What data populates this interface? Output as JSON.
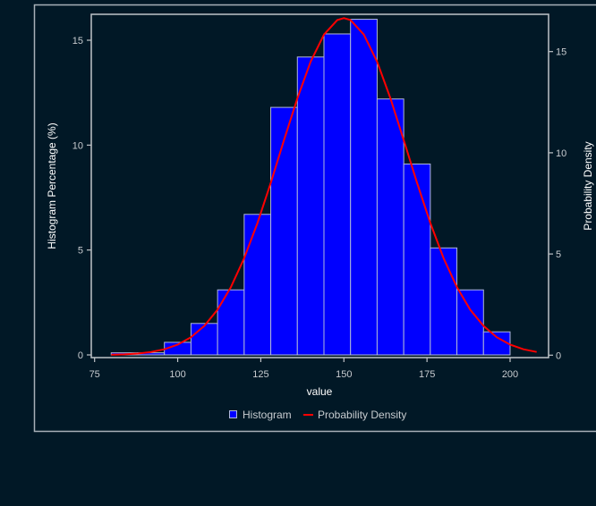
{
  "chart_data": {
    "type": "bar",
    "xlabel": "value",
    "ylabel": "Histogram Percentage (%)",
    "ylabel_right": "Probability Density",
    "xlim": [
      75,
      208
    ],
    "ylim": [
      0,
      16.2
    ],
    "ylim_right": [
      0,
      16.8
    ],
    "x_ticks": [
      75,
      100,
      125,
      150,
      175,
      200
    ],
    "y_ticks": [
      0,
      5,
      10,
      15
    ],
    "y_ticks_right": [
      0,
      5,
      10,
      15
    ],
    "grid": false,
    "legend_position": "bottom",
    "colors": {
      "background": "#011826",
      "bar_fill": "#0000ff",
      "bar_edge": "#b0b8d8",
      "curve": "#ff0000",
      "axis": "#c0c4c8",
      "text": "#c8ccd0"
    },
    "histogram": {
      "name": "Histogram",
      "bin_edges": [
        80,
        88,
        96,
        104,
        112,
        120,
        128,
        136,
        144,
        152,
        160,
        168,
        176,
        184,
        192,
        200
      ],
      "values": [
        0.1,
        0.1,
        0.6,
        1.5,
        3.1,
        6.7,
        11.8,
        14.2,
        15.3,
        16.0,
        12.2,
        9.1,
        5.1,
        3.1,
        1.1
      ]
    },
    "density": {
      "name": "Probability Density",
      "x": [
        80,
        84,
        88,
        92,
        96,
        100,
        104,
        108,
        112,
        116,
        120,
        124,
        128,
        132,
        136,
        140,
        144,
        148,
        150,
        152,
        156,
        160,
        164,
        168,
        172,
        176,
        180,
        184,
        188,
        192,
        196,
        200,
        204,
        208
      ],
      "y": [
        0.02,
        0.04,
        0.08,
        0.16,
        0.29,
        0.52,
        0.89,
        1.45,
        2.25,
        3.36,
        4.79,
        6.53,
        8.52,
        10.63,
        12.69,
        14.5,
        15.84,
        16.56,
        16.65,
        16.56,
        15.84,
        14.5,
        12.69,
        10.63,
        8.52,
        6.53,
        4.79,
        3.36,
        2.25,
        1.45,
        0.89,
        0.52,
        0.29,
        0.16
      ]
    }
  }
}
